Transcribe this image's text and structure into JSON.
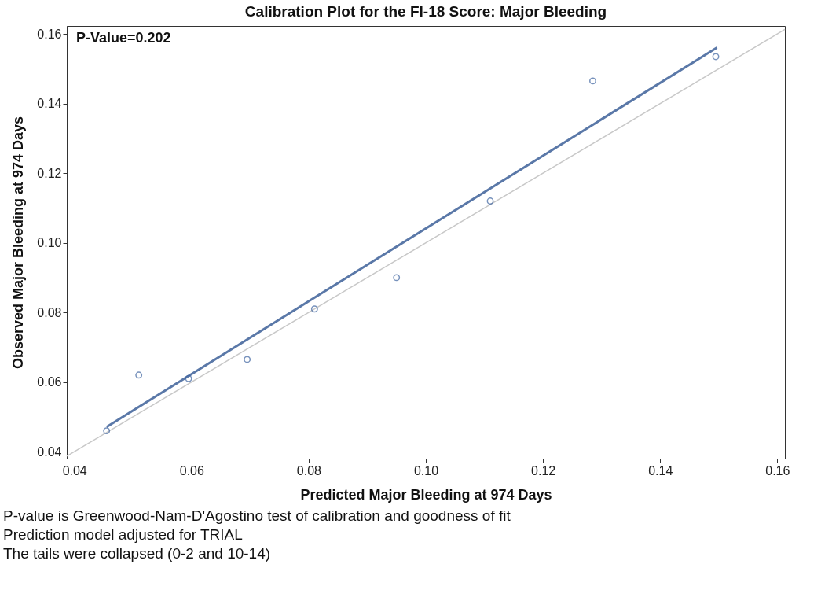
{
  "chart_data": {
    "type": "scatter",
    "title": "Calibration Plot for the FI-18 Score: Major Bleeding",
    "xlabel": "Predicted Major Bleeding at 974 Days",
    "ylabel": "Observed Major Bleeding at 974 Days",
    "series": [
      {
        "type": "line",
        "color": "#c8c8c8",
        "x": [
          0.0387,
          0.1613
        ],
        "values": [
          0.0387,
          0.1613
        ],
        "marker": "none"
      },
      {
        "type": "line",
        "color": "#5a78a8",
        "x": [
          0.0455,
          0.1497
        ],
        "values": [
          0.0471,
          0.1561
        ],
        "marker": "none"
      },
      {
        "color": "#3e64a0",
        "marker": "circle",
        "x": [
          0.0455,
          0.051,
          0.0595,
          0.0695,
          0.081,
          0.095,
          0.111,
          0.1285,
          0.1495
        ],
        "values": [
          0.046,
          0.062,
          0.061,
          0.0665,
          0.081,
          0.09,
          0.112,
          0.1465,
          0.1535
        ]
      }
    ],
    "xlim": [
      0.0387,
      0.1613
    ],
    "ylim": [
      0.038,
      0.1623
    ],
    "xticks": [
      0.04,
      0.06,
      0.08,
      {
        "value": 0.1,
        "label": "0.10"
      },
      0.12,
      0.14,
      0.16
    ],
    "yticks": [
      0.04,
      0.06,
      0.08,
      {
        "value": 0.1,
        "label": "0.10"
      },
      0.12,
      0.14,
      0.16
    ],
    "grid": false,
    "annotations": [
      "P-Value=0.202",
      "P-value is Greenwood-Nam-D'Agostino test of calibration and goodness of fit",
      "Prediction model adjusted for TRIAL",
      "The tails were collapsed (0-2 and 10-14)"
    ]
  }
}
